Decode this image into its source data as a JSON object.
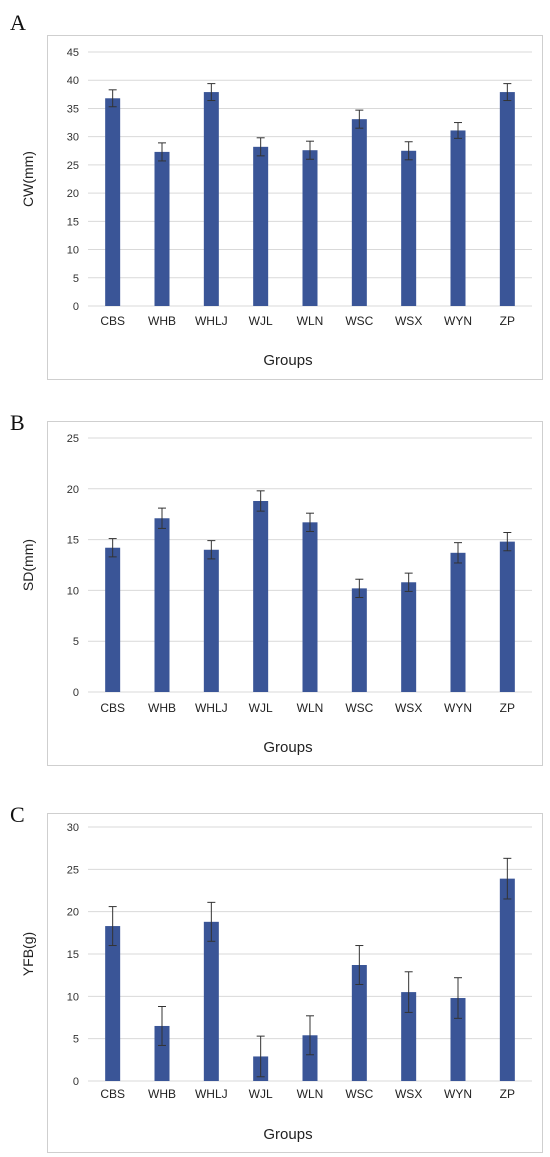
{
  "chart_data": [
    {
      "type": "bar",
      "panel": "A",
      "categories": [
        "CBS",
        "WHB",
        "WHLJ",
        "WJL",
        "WLN",
        "WSC",
        "WSX",
        "WYN",
        "ZP"
      ],
      "values": [
        36.8,
        27.3,
        37.9,
        28.2,
        27.6,
        33.1,
        27.5,
        31.1,
        37.9
      ],
      "errors": [
        1.5,
        1.6,
        1.5,
        1.6,
        1.6,
        1.6,
        1.6,
        1.4,
        1.5
      ],
      "xlabel": "Groups",
      "ylabel": "CW(mm)",
      "ylim": [
        0,
        45
      ],
      "yticks": [
        0,
        5,
        10,
        15,
        20,
        25,
        30,
        35,
        40,
        45
      ],
      "grid": true,
      "bar_color": "#3a5597"
    },
    {
      "type": "bar",
      "panel": "B",
      "categories": [
        "CBS",
        "WHB",
        "WHLJ",
        "WJL",
        "WLN",
        "WSC",
        "WSX",
        "WYN",
        "ZP"
      ],
      "values": [
        14.2,
        17.1,
        14.0,
        18.8,
        16.7,
        10.2,
        10.8,
        13.7,
        14.8
      ],
      "errors": [
        0.9,
        1.0,
        0.9,
        1.0,
        0.9,
        0.9,
        0.9,
        1.0,
        0.9
      ],
      "xlabel": "Groups",
      "ylabel": "SD(mm)",
      "ylim": [
        0,
        25
      ],
      "yticks": [
        0,
        5,
        10,
        15,
        20,
        25
      ],
      "grid": true,
      "bar_color": "#3a5597"
    },
    {
      "type": "bar",
      "panel": "C",
      "categories": [
        "CBS",
        "WHB",
        "WHLJ",
        "WJL",
        "WLN",
        "WSC",
        "WSX",
        "WYN",
        "ZP"
      ],
      "values": [
        18.3,
        6.5,
        18.8,
        2.9,
        5.4,
        13.7,
        10.5,
        9.8,
        23.9
      ],
      "errors": [
        2.3,
        2.3,
        2.3,
        2.4,
        2.3,
        2.3,
        2.4,
        2.4,
        2.4
      ],
      "xlabel": "Groups",
      "ylabel": "YFB(g)",
      "ylim": [
        0,
        30
      ],
      "yticks": [
        0,
        5,
        10,
        15,
        20,
        25,
        30
      ],
      "grid": true,
      "bar_color": "#3a5597"
    }
  ]
}
